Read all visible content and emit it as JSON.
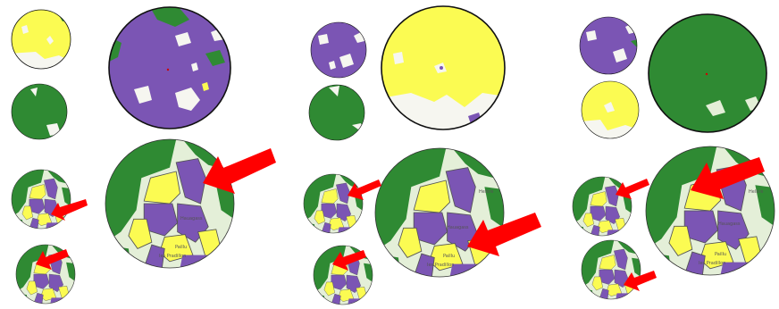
{
  "colors": {
    "purple": "#7b55b4",
    "yellow": "#fbfb52",
    "green": "#2f8a33",
    "white": "#f6f6f0",
    "pale_green": "#e4efd8",
    "red": "#ff0000",
    "outline": "#111111"
  },
  "map_labels": {
    "p1": [
      "Hauagass",
      "Paillu",
      "Ies Pradillon"
    ],
    "p2": [
      "Helbre",
      "Hauagass",
      "Paillu",
      "Ies Pradillon"
    ],
    "p3": [
      "Helbre",
      "Hauagass",
      "Paillu",
      "Ies Pradillon"
    ]
  },
  "panels": [
    {
      "id": "panel-1",
      "top_small_colors": [
        "yellow",
        "green"
      ],
      "top_large_color": "purple"
    },
    {
      "id": "panel-2",
      "top_small_colors": [
        "purple",
        "green"
      ],
      "top_large_color": "yellow"
    },
    {
      "id": "panel-3",
      "top_small_colors": [
        "purple",
        "yellow"
      ],
      "top_large_color": "green"
    }
  ],
  "icons": {
    "arrow": "red-arrow-icon",
    "map_circle": "map-circle-icon"
  }
}
